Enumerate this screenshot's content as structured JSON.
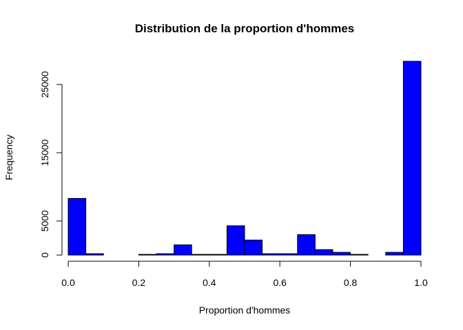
{
  "chart_data": {
    "type": "bar",
    "title": "Distribution de la proportion d'hommes",
    "xlabel": "Proportion d'hommes",
    "ylabel": "Frequency",
    "xlim": [
      0,
      1
    ],
    "ylim": [
      0,
      28500
    ],
    "bin_width": 0.05,
    "x_ticks": [
      0,
      0.2,
      0.4,
      0.6,
      0.8,
      1
    ],
    "x_tick_labels": [
      "0.0",
      "0.2",
      "0.4",
      "0.6",
      "0.8",
      "1.0"
    ],
    "y_ticks": [
      0,
      5000,
      15000,
      25000
    ],
    "y_tick_labels": [
      "0",
      "5000",
      "15000",
      "25000"
    ],
    "bins": [
      {
        "x0": 0.0,
        "x1": 0.05,
        "value": 8300
      },
      {
        "x0": 0.05,
        "x1": 0.1,
        "value": 200
      },
      {
        "x0": 0.1,
        "x1": 0.15,
        "value": 0
      },
      {
        "x0": 0.15,
        "x1": 0.2,
        "value": 0
      },
      {
        "x0": 0.2,
        "x1": 0.25,
        "value": 100
      },
      {
        "x0": 0.25,
        "x1": 0.3,
        "value": 200
      },
      {
        "x0": 0.3,
        "x1": 0.35,
        "value": 1500
      },
      {
        "x0": 0.35,
        "x1": 0.4,
        "value": 100
      },
      {
        "x0": 0.4,
        "x1": 0.45,
        "value": 100
      },
      {
        "x0": 0.45,
        "x1": 0.5,
        "value": 4300
      },
      {
        "x0": 0.5,
        "x1": 0.55,
        "value": 2200
      },
      {
        "x0": 0.55,
        "x1": 0.6,
        "value": 200
      },
      {
        "x0": 0.6,
        "x1": 0.65,
        "value": 200
      },
      {
        "x0": 0.65,
        "x1": 0.7,
        "value": 3000
      },
      {
        "x0": 0.7,
        "x1": 0.75,
        "value": 800
      },
      {
        "x0": 0.75,
        "x1": 0.8,
        "value": 400
      },
      {
        "x0": 0.8,
        "x1": 0.85,
        "value": 100
      },
      {
        "x0": 0.85,
        "x1": 0.9,
        "value": 0
      },
      {
        "x0": 0.9,
        "x1": 0.95,
        "value": 400
      },
      {
        "x0": 0.95,
        "x1": 1.0,
        "value": 28400
      }
    ],
    "bar_color": "#0000ff",
    "bar_border": "#000000",
    "grid": false,
    "legend": "none"
  }
}
